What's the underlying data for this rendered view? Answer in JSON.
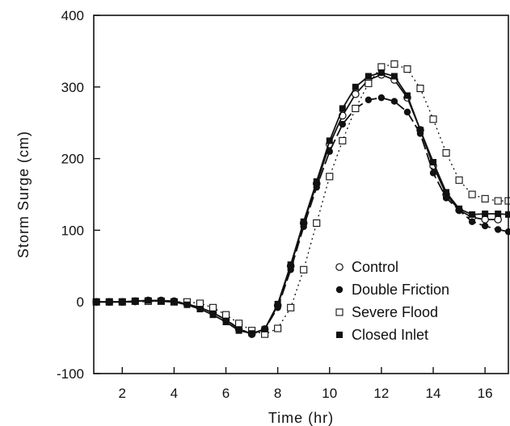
{
  "chart_data": {
    "type": "line",
    "title": "",
    "xlabel": "Time (hr)",
    "ylabel": "Storm Surge (cm)",
    "xlim": [
      0.9,
      16.9
    ],
    "ylim": [
      -100,
      400
    ],
    "xticks": [
      2,
      4,
      6,
      8,
      10,
      12,
      14,
      16
    ],
    "yticks": [
      -100,
      0,
      100,
      200,
      300,
      400
    ],
    "xtick_labels": [
      "2",
      "4",
      "6",
      "8",
      "10",
      "12",
      "14",
      "16"
    ],
    "ytick_labels": [
      "-100",
      "0",
      "100",
      "200",
      "300",
      "400"
    ],
    "grid": false,
    "legend_position": "bottom-right",
    "series": [
      {
        "name": "Control",
        "marker": "open-circle",
        "line": "solid",
        "x": [
          1.0,
          1.5,
          2.0,
          2.5,
          3.0,
          3.5,
          4.0,
          4.5,
          5.0,
          5.5,
          6.0,
          6.5,
          7.0,
          7.5,
          8.0,
          8.5,
          9.0,
          9.5,
          10.0,
          10.5,
          11.0,
          11.5,
          12.0,
          12.5,
          13.0,
          13.5,
          14.0,
          14.5,
          15.0,
          15.5,
          16.0,
          16.5
        ],
        "y": [
          0,
          0,
          0,
          1,
          2,
          2,
          1,
          -3,
          -8,
          -15,
          -25,
          -38,
          -45,
          -38,
          -5,
          50,
          110,
          165,
          220,
          260,
          290,
          310,
          317,
          310,
          285,
          240,
          190,
          150,
          128,
          118,
          115,
          115
        ]
      },
      {
        "name": "Double Friction",
        "marker": "filled-circle",
        "line": "dashed",
        "x": [
          1.0,
          1.5,
          2.0,
          2.5,
          3.0,
          3.5,
          4.0,
          4.5,
          5.0,
          5.5,
          6.0,
          6.5,
          7.0,
          7.5,
          8.0,
          8.5,
          9.0,
          9.5,
          10.0,
          10.5,
          11.0,
          11.5,
          12.0,
          12.5,
          13.0,
          13.5,
          14.0,
          14.5,
          15.0,
          15.5,
          16.0,
          16.5,
          16.9
        ],
        "y": [
          0,
          0,
          0,
          0,
          1,
          1,
          0,
          -3,
          -8,
          -15,
          -25,
          -37,
          -45,
          -38,
          -8,
          45,
          105,
          160,
          210,
          248,
          270,
          282,
          285,
          280,
          265,
          235,
          180,
          145,
          128,
          112,
          106,
          101,
          98
        ]
      },
      {
        "name": "Severe Flood",
        "marker": "open-square",
        "line": "dotted",
        "x": [
          1.0,
          1.5,
          2.0,
          2.5,
          3.0,
          3.5,
          4.0,
          4.5,
          5.0,
          5.5,
          6.0,
          6.5,
          7.0,
          7.5,
          8.0,
          8.5,
          9.0,
          9.5,
          10.0,
          10.5,
          11.0,
          11.5,
          12.0,
          12.5,
          13.0,
          13.5,
          14.0,
          14.5,
          15.0,
          15.5,
          16.0,
          16.5,
          16.9
        ],
        "y": [
          0,
          0,
          0,
          1,
          1,
          1,
          0,
          0,
          -2,
          -8,
          -18,
          -30,
          -40,
          -45,
          -37,
          -8,
          45,
          110,
          175,
          225,
          270,
          305,
          328,
          332,
          325,
          298,
          255,
          208,
          170,
          150,
          144,
          141,
          141
        ]
      },
      {
        "name": "Closed Inlet",
        "marker": "filled-square",
        "line": "solid",
        "x": [
          1.0,
          1.5,
          2.0,
          2.5,
          3.0,
          3.5,
          4.0,
          4.5,
          5.0,
          5.5,
          6.0,
          6.5,
          7.0,
          7.5,
          8.0,
          8.5,
          9.0,
          9.5,
          10.0,
          10.5,
          11.0,
          11.5,
          12.0,
          12.5,
          13.0,
          13.5,
          14.0,
          14.5,
          15.0,
          15.5,
          16.0,
          16.5,
          16.9
        ],
        "y": [
          0,
          0,
          0,
          1,
          2,
          1,
          0,
          -4,
          -10,
          -18,
          -28,
          -40,
          -44,
          -38,
          -3,
          52,
          112,
          168,
          225,
          270,
          300,
          315,
          320,
          315,
          288,
          240,
          195,
          153,
          130,
          122,
          123,
          123,
          122
        ]
      }
    ]
  }
}
